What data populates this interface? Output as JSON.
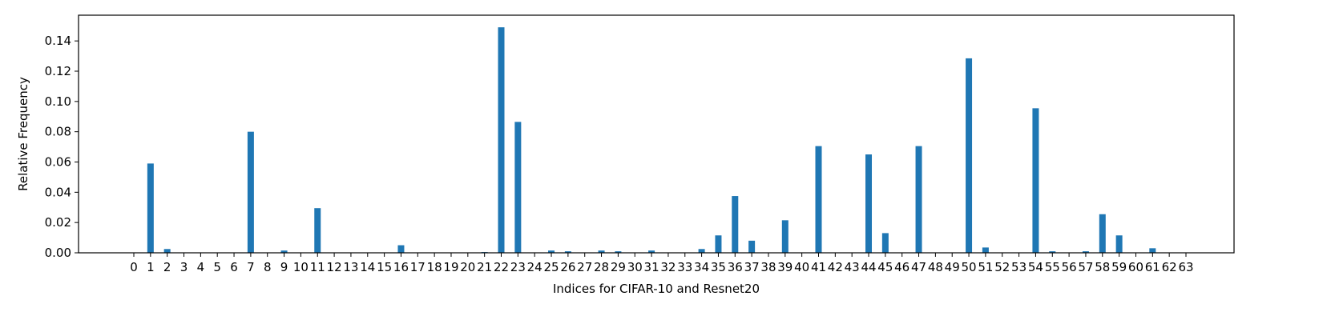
{
  "chart_data": {
    "type": "bar",
    "xlabel": "Indices for CIFAR-10 and Resnet20",
    "ylabel": "Relative Frequency",
    "ylim": [
      0,
      0.157
    ],
    "yticks": [
      "0.00",
      "0.02",
      "0.04",
      "0.06",
      "0.08",
      "0.10",
      "0.12",
      "0.14"
    ],
    "bar_color": "#1f77b4",
    "grid": false,
    "categories": [
      "0",
      "1",
      "2",
      "3",
      "4",
      "5",
      "6",
      "7",
      "8",
      "9",
      "10",
      "11",
      "12",
      "13",
      "14",
      "15",
      "16",
      "17",
      "18",
      "19",
      "20",
      "21",
      "22",
      "23",
      "24",
      "25",
      "26",
      "27",
      "28",
      "29",
      "30",
      "31",
      "32",
      "33",
      "34",
      "35",
      "36",
      "37",
      "38",
      "39",
      "40",
      "41",
      "42",
      "43",
      "44",
      "45",
      "46",
      "47",
      "48",
      "49",
      "50",
      "51",
      "52",
      "53",
      "54",
      "55",
      "56",
      "57",
      "58",
      "59",
      "60",
      "61",
      "62",
      "63"
    ],
    "tick_labels": [
      "0",
      "1",
      "2",
      "3",
      "4",
      "5",
      "6",
      "7",
      "8",
      "9",
      "10",
      "11",
      "12",
      "13",
      "14",
      "15",
      "16",
      "17",
      "18",
      "19",
      "20",
      "21",
      "22",
      "23",
      "24",
      "25",
      "26",
      "27",
      "28",
      "29",
      "30",
      "31",
      "32",
      "33",
      "34",
      "35",
      "36",
      "37",
      "38",
      "39",
      "40",
      "41",
      "42",
      "43",
      "44",
      "45",
      "46",
      "47",
      "48",
      "49",
      "50",
      "51",
      "52",
      "53",
      "54",
      "55",
      "56",
      "57",
      "58",
      "59",
      "60",
      "61",
      "62",
      "63"
    ],
    "values": [
      0,
      0.059,
      0.0025,
      0,
      0,
      0,
      0,
      0.08,
      0,
      0.0015,
      0,
      0.0295,
      0,
      0,
      0,
      0,
      0.005,
      0,
      0,
      0,
      0,
      0.0005,
      0.149,
      0.0865,
      0,
      0.0015,
      0.001,
      0,
      0.0015,
      0.001,
      0,
      0.0015,
      0,
      0,
      0.0025,
      0.0115,
      0.0375,
      0.008,
      0,
      0.0215,
      0,
      0.0705,
      0,
      0,
      0.065,
      0.013,
      0,
      0.0705,
      0,
      0,
      0.1285,
      0.0035,
      0,
      0,
      0.0955,
      0.001,
      0,
      0.001,
      0.0255,
      0.0115,
      0,
      0.003,
      0,
      0
    ]
  }
}
